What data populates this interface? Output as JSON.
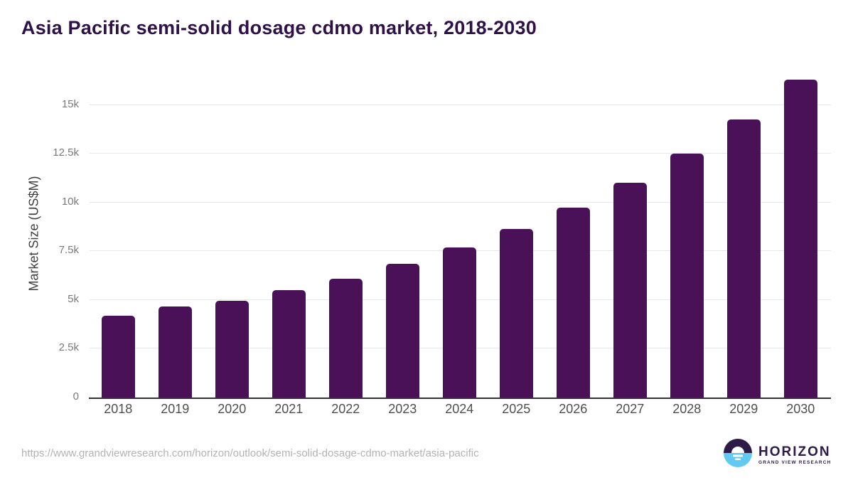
{
  "page": {
    "title": "Asia Pacific semi-solid dosage cdmo market, 2018-2030",
    "footer_url": "https://www.grandviewresearch.com/horizon/outlook/semi-solid-dosage-cdmo-market/asia-pacific",
    "logo": {
      "name": "HORIZON",
      "subtitle": "GRAND VIEW RESEARCH"
    }
  },
  "colors": {
    "bar": "#4a1158",
    "title_text": "#2e1247",
    "axis_title": "#3f3f3f",
    "y_tick_text": "#7a7a7a",
    "x_tick_text": "#4f4f4f",
    "gridline": "#e8e8e8",
    "axis_line": "#333333",
    "url_text": "#b3b3b3",
    "logo_purple": "#2e1a47",
    "logo_blue": "#62c9f3"
  },
  "chart_data": {
    "type": "bar",
    "title": "Asia Pacific semi-solid dosage cdmo market, 2018-2030",
    "xlabel": "",
    "ylabel": "Market Size (US$M)",
    "categories": [
      "2018",
      "2019",
      "2020",
      "2021",
      "2022",
      "2023",
      "2024",
      "2025",
      "2026",
      "2027",
      "2028",
      "2029",
      "2030"
    ],
    "values": [
      4200,
      4670,
      4970,
      5500,
      6100,
      6840,
      7690,
      8660,
      9720,
      11000,
      12500,
      14250,
      16300
    ],
    "yticks": {
      "labels": [
        "0",
        "2.5k",
        "5k",
        "7.5k",
        "10k",
        "12.5k",
        "15k"
      ],
      "values": [
        0,
        2500,
        5000,
        7500,
        10000,
        12500,
        15000
      ]
    },
    "ylim": [
      0,
      16800
    ],
    "grid": true,
    "legend": false,
    "bar_color": "#4a1158"
  }
}
